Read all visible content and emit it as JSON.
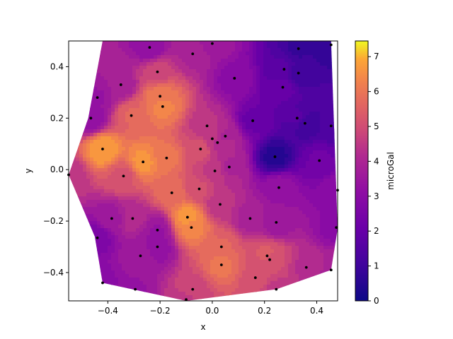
{
  "chart_data": {
    "type": "contour",
    "xlabel": "x",
    "ylabel": "y",
    "colorbar_label": "microGal",
    "xlim": [
      -0.55,
      0.48
    ],
    "ylim": [
      -0.51,
      0.5
    ],
    "clim": [
      0,
      7.45
    ],
    "colormap": "plasma",
    "x_ticks": [
      -0.4,
      -0.2,
      0.0,
      0.2,
      0.4
    ],
    "x_tick_labels": [
      "−0.4",
      "−0.2",
      "0.0",
      "0.2",
      "0.4"
    ],
    "y_ticks": [
      -0.4,
      -0.2,
      0.0,
      0.2,
      0.4
    ],
    "y_tick_labels": [
      "−0.4",
      "−0.2",
      "0.0",
      "0.2",
      "0.4"
    ],
    "colorbar_ticks": [
      0,
      1,
      2,
      3,
      4,
      5,
      6,
      7
    ],
    "colorbar_tick_labels": [
      "0",
      "1",
      "2",
      "3",
      "4",
      "5",
      "6",
      "7"
    ],
    "hull": [
      [
        -0.55,
        -0.02
      ],
      [
        -0.475,
        0.2
      ],
      [
        -0.42,
        0.5
      ],
      [
        0.455,
        0.5
      ],
      [
        0.48,
        -0.23
      ],
      [
        0.455,
        -0.39
      ],
      [
        0.245,
        -0.465
      ],
      [
        -0.1,
        -0.51
      ],
      [
        -0.42,
        -0.44
      ],
      [
        -0.45,
        -0.26
      ]
    ],
    "points": [
      {
        "x": -0.42,
        "y": 0.08,
        "v": 6.8
      },
      {
        "x": -0.44,
        "y": 0.28,
        "v": 3.4
      },
      {
        "x": -0.465,
        "y": 0.2,
        "v": 3.2
      },
      {
        "x": -0.35,
        "y": 0.33,
        "v": 3.8
      },
      {
        "x": -0.31,
        "y": 0.21,
        "v": 5.6
      },
      {
        "x": -0.24,
        "y": 0.475,
        "v": 3.2
      },
      {
        "x": -0.21,
        "y": 0.38,
        "v": 4.8
      },
      {
        "x": -0.2,
        "y": 0.285,
        "v": 6.1
      },
      {
        "x": -0.19,
        "y": 0.245,
        "v": 6.3
      },
      {
        "x": -0.075,
        "y": 0.45,
        "v": 4.0
      },
      {
        "x": 0.0,
        "y": 0.49,
        "v": 3.6
      },
      {
        "x": 0.085,
        "y": 0.355,
        "v": 3.0
      },
      {
        "x": 0.27,
        "y": 0.32,
        "v": 2.0
      },
      {
        "x": 0.275,
        "y": 0.39,
        "v": 1.6
      },
      {
        "x": 0.33,
        "y": 0.375,
        "v": 1.0
      },
      {
        "x": 0.33,
        "y": 0.47,
        "v": 0.9
      },
      {
        "x": 0.455,
        "y": 0.485,
        "v": 0.7
      },
      {
        "x": 0.325,
        "y": 0.2,
        "v": 1.6
      },
      {
        "x": 0.355,
        "y": 0.18,
        "v": 1.0
      },
      {
        "x": 0.455,
        "y": 0.17,
        "v": 1.3
      },
      {
        "x": 0.41,
        "y": 0.035,
        "v": 2.2
      },
      {
        "x": 0.24,
        "y": 0.05,
        "v": 0.5
      },
      {
        "x": 0.155,
        "y": 0.19,
        "v": 2.1
      },
      {
        "x": 0.05,
        "y": 0.13,
        "v": 4.0
      },
      {
        "x": -0.02,
        "y": 0.17,
        "v": 4.4
      },
      {
        "x": 0.0,
        "y": 0.12,
        "v": 4.5
      },
      {
        "x": 0.02,
        "y": 0.105,
        "v": 4.3
      },
      {
        "x": -0.045,
        "y": 0.08,
        "v": 5.2
      },
      {
        "x": 0.065,
        "y": 0.01,
        "v": 4.0
      },
      {
        "x": 0.01,
        "y": -0.005,
        "v": 4.5
      },
      {
        "x": -0.175,
        "y": 0.045,
        "v": 6.0
      },
      {
        "x": -0.265,
        "y": 0.03,
        "v": 6.6
      },
      {
        "x": -0.34,
        "y": -0.025,
        "v": 5.2
      },
      {
        "x": 0.255,
        "y": -0.07,
        "v": 3.3
      },
      {
        "x": 0.48,
        "y": -0.08,
        "v": 3.0
      },
      {
        "x": -0.155,
        "y": -0.09,
        "v": 5.8
      },
      {
        "x": -0.05,
        "y": -0.075,
        "v": 5.0
      },
      {
        "x": 0.03,
        "y": -0.135,
        "v": 4.4
      },
      {
        "x": -0.385,
        "y": -0.19,
        "v": 3.6
      },
      {
        "x": -0.305,
        "y": -0.19,
        "v": 4.2
      },
      {
        "x": -0.095,
        "y": -0.185,
        "v": 6.7
      },
      {
        "x": -0.08,
        "y": -0.225,
        "v": 6.3
      },
      {
        "x": 0.145,
        "y": -0.19,
        "v": 3.9
      },
      {
        "x": 0.245,
        "y": -0.205,
        "v": 3.5
      },
      {
        "x": 0.475,
        "y": -0.225,
        "v": 3.0
      },
      {
        "x": -0.21,
        "y": -0.235,
        "v": 3.4
      },
      {
        "x": -0.44,
        "y": -0.265,
        "v": 2.6
      },
      {
        "x": -0.21,
        "y": -0.3,
        "v": 3.2
      },
      {
        "x": -0.275,
        "y": -0.335,
        "v": 3.6
      },
      {
        "x": 0.035,
        "y": -0.3,
        "v": 5.6
      },
      {
        "x": 0.21,
        "y": -0.335,
        "v": 5.4
      },
      {
        "x": 0.22,
        "y": -0.35,
        "v": 5.0
      },
      {
        "x": 0.035,
        "y": -0.37,
        "v": 6.0
      },
      {
        "x": 0.36,
        "y": -0.38,
        "v": 4.3
      },
      {
        "x": 0.455,
        "y": -0.39,
        "v": 4.0
      },
      {
        "x": 0.165,
        "y": -0.42,
        "v": 5.2
      },
      {
        "x": -0.42,
        "y": -0.44,
        "v": 3.0
      },
      {
        "x": -0.295,
        "y": -0.465,
        "v": 3.4
      },
      {
        "x": -0.075,
        "y": -0.465,
        "v": 4.9
      },
      {
        "x": 0.245,
        "y": -0.465,
        "v": 4.6
      },
      {
        "x": -0.1,
        "y": -0.505,
        "v": 4.5
      },
      {
        "x": -0.55,
        "y": -0.02,
        "v": 4.4
      }
    ]
  }
}
